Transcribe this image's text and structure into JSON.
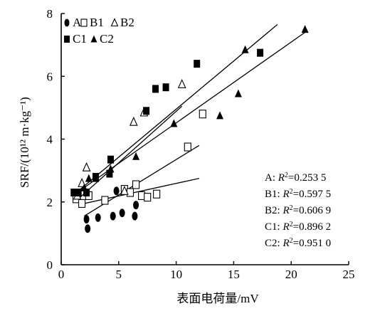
{
  "chart_data": {
    "type": "scatter",
    "xlabel": "表面电荷量/mV",
    "ylabel": "SRF/(10¹² m·kg⁻¹)",
    "xlim": [
      0,
      25
    ],
    "ylim": [
      0,
      8
    ],
    "xticks": [
      0,
      5,
      10,
      15,
      20,
      25
    ],
    "yticks": [
      0,
      2,
      4,
      6,
      8
    ],
    "grid": false,
    "legend_position": "top-left",
    "series": [
      {
        "name": "A",
        "marker": "circle-filled",
        "points": [
          [
            2.2,
            1.45
          ],
          [
            2.3,
            1.15
          ],
          [
            3.2,
            1.5
          ],
          [
            4.5,
            1.55
          ],
          [
            5.3,
            1.65
          ],
          [
            6.4,
            1.55
          ],
          [
            6.5,
            1.9
          ],
          [
            4.8,
            2.35
          ]
        ],
        "fit": [
          [
            2.0,
            1.55
          ],
          [
            12.0,
            3.8
          ]
        ]
      },
      {
        "name": "B1",
        "marker": "square-open",
        "points": [
          [
            1.3,
            2.1
          ],
          [
            1.8,
            1.95
          ],
          [
            2.4,
            2.2
          ],
          [
            3.8,
            2.05
          ],
          [
            5.5,
            2.4
          ],
          [
            6.0,
            2.3
          ],
          [
            6.5,
            2.55
          ],
          [
            7.0,
            2.2
          ],
          [
            7.5,
            2.15
          ],
          [
            8.3,
            2.25
          ],
          [
            11.0,
            3.75
          ],
          [
            12.3,
            4.8
          ]
        ],
        "fit": [
          [
            2.0,
            1.95
          ],
          [
            12.0,
            2.75
          ]
        ]
      },
      {
        "name": "B2",
        "marker": "triangle-open",
        "points": [
          [
            1.4,
            2.2
          ],
          [
            1.8,
            2.6
          ],
          [
            2.2,
            3.1
          ],
          [
            5.5,
            2.35
          ],
          [
            6.3,
            4.55
          ],
          [
            7.2,
            4.85
          ],
          [
            10.5,
            5.75
          ]
        ],
        "fit": [
          [
            1.5,
            2.1
          ],
          [
            10.5,
            5.05
          ]
        ]
      },
      {
        "name": "C1",
        "marker": "square-filled",
        "points": [
          [
            1.1,
            2.3
          ],
          [
            1.5,
            2.3
          ],
          [
            2.2,
            2.3
          ],
          [
            3.0,
            2.8
          ],
          [
            4.2,
            2.9
          ],
          [
            4.3,
            3.35
          ],
          [
            7.4,
            4.9
          ],
          [
            8.2,
            5.6
          ],
          [
            9.1,
            5.65
          ],
          [
            11.8,
            6.4
          ],
          [
            17.3,
            6.75
          ]
        ],
        "fit": [
          [
            1.0,
            2.2
          ],
          [
            18.8,
            7.65
          ]
        ]
      },
      {
        "name": "C2",
        "marker": "triangle-filled",
        "points": [
          [
            2.0,
            2.45
          ],
          [
            2.4,
            2.75
          ],
          [
            3.0,
            2.75
          ],
          [
            4.3,
            3.05
          ],
          [
            6.5,
            3.45
          ],
          [
            9.8,
            4.5
          ],
          [
            13.8,
            4.75
          ],
          [
            15.4,
            5.45
          ],
          [
            16.0,
            6.85
          ],
          [
            21.2,
            7.5
          ]
        ],
        "fit": [
          [
            1.0,
            2.2
          ],
          [
            21.2,
            7.4
          ]
        ]
      }
    ],
    "r2_labels": [
      {
        "name": "A",
        "r2": "0.253 5"
      },
      {
        "name": "B1",
        "r2": "0.597 5"
      },
      {
        "name": "B2",
        "r2": "0.606 9"
      },
      {
        "name": "C1",
        "r2": "0.896 2"
      },
      {
        "name": "C2",
        "r2": "0.951 0"
      }
    ],
    "legend": {
      "row1": [
        "A",
        "B1",
        "B2"
      ],
      "row2": [
        "C1",
        "C2"
      ]
    }
  }
}
